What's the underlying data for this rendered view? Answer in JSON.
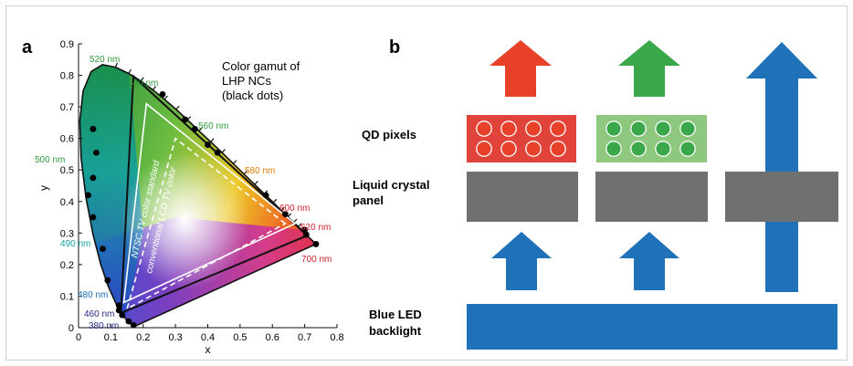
{
  "panel_a": {
    "label": "a",
    "legend_text": [
      "Color gamut of",
      "LHP NCs",
      "(black dots)"
    ],
    "ntsc_label": "NTSC TV color standard",
    "lcd_label": "conventional LCD TV color",
    "wavelength_labels": [
      {
        "text": "520 nm",
        "color": "#2e9a3a"
      },
      {
        "text": "540 nm",
        "color": "#2e9a3a"
      },
      {
        "text": "560 nm",
        "color": "#2e9a3a"
      },
      {
        "text": "580 nm",
        "color": "#e07b00"
      },
      {
        "text": "600 nm",
        "color": "#d0202a"
      },
      {
        "text": "620 nm",
        "color": "#d0202a"
      },
      {
        "text": "700 nm",
        "color": "#d0202a"
      },
      {
        "text": "500 nm",
        "color": "#2e9a3a"
      },
      {
        "text": "490 nm",
        "color": "#19a0a8"
      },
      {
        "text": "480 nm",
        "color": "#1d6bb5"
      },
      {
        "text": "460 nm",
        "color": "#2a2a8a"
      },
      {
        "text": "380 nm",
        "color": "#2a2a8a"
      }
    ]
  },
  "chart_data": {
    "type": "scatter",
    "title": "",
    "xlabel": "x",
    "ylabel": "y",
    "xlim": [
      0,
      0.8
    ],
    "ylim": [
      0,
      0.9
    ],
    "xticks": [
      "0",
      "0.1",
      "0.2",
      "0.3",
      "0.4",
      "0.5",
      "0.6",
      "0.7",
      "0.8"
    ],
    "yticks": [
      "0",
      "0.1",
      "0.2",
      "0.3",
      "0.4",
      "0.5",
      "0.6",
      "0.7",
      "0.8",
      "0.9"
    ],
    "grid": false,
    "spectral_locus": [
      [
        0.175,
        0.005
      ],
      [
        0.172,
        0.005
      ],
      [
        0.166,
        0.009
      ],
      [
        0.144,
        0.03
      ],
      [
        0.124,
        0.058
      ],
      [
        0.091,
        0.133
      ],
      [
        0.069,
        0.2
      ],
      [
        0.045,
        0.295
      ],
      [
        0.023,
        0.413
      ],
      [
        0.008,
        0.538
      ],
      [
        0.004,
        0.655
      ],
      [
        0.014,
        0.75
      ],
      [
        0.039,
        0.812
      ],
      [
        0.074,
        0.834
      ],
      [
        0.114,
        0.826
      ],
      [
        0.155,
        0.806
      ],
      [
        0.193,
        0.782
      ],
      [
        0.23,
        0.754
      ],
      [
        0.266,
        0.724
      ],
      [
        0.302,
        0.692
      ],
      [
        0.337,
        0.659
      ],
      [
        0.373,
        0.624
      ],
      [
        0.409,
        0.589
      ],
      [
        0.444,
        0.555
      ],
      [
        0.479,
        0.52
      ],
      [
        0.512,
        0.487
      ],
      [
        0.545,
        0.454
      ],
      [
        0.575,
        0.424
      ],
      [
        0.603,
        0.397
      ],
      [
        0.627,
        0.372
      ],
      [
        0.648,
        0.351
      ],
      [
        0.666,
        0.334
      ],
      [
        0.68,
        0.32
      ],
      [
        0.692,
        0.308
      ],
      [
        0.705,
        0.294
      ],
      [
        0.735,
        0.265
      ]
    ],
    "series": [
      {
        "points": [
          [
            0.708,
            0.292
          ],
          [
            0.17,
            0.797
          ],
          [
            0.131,
            0.046
          ]
        ]
      },
      {
        "points": [
          [
            0.67,
            0.33
          ],
          [
            0.21,
            0.71
          ],
          [
            0.14,
            0.08
          ]
        ]
      },
      {
        "points": [
          [
            0.64,
            0.33
          ],
          [
            0.3,
            0.6
          ],
          [
            0.15,
            0.06
          ]
        ]
      },
      {
        "points": [
          [
            0.045,
            0.63
          ],
          [
            0.055,
            0.555
          ],
          [
            0.045,
            0.475
          ],
          [
            0.03,
            0.42
          ],
          [
            0.045,
            0.35
          ],
          [
            0.075,
            0.25
          ],
          [
            0.09,
            0.15
          ],
          [
            0.125,
            0.07
          ],
          [
            0.155,
            0.02
          ],
          [
            0.17,
            0.008
          ],
          [
            0.26,
            0.74
          ],
          [
            0.33,
            0.66
          ],
          [
            0.36,
            0.63
          ],
          [
            0.4,
            0.58
          ],
          [
            0.43,
            0.555
          ],
          [
            0.58,
            0.42
          ],
          [
            0.64,
            0.36
          ],
          [
            0.7,
            0.31
          ],
          [
            0.705,
            0.295
          ],
          [
            0.735,
            0.265
          ],
          [
            0.125,
            0.055
          ],
          [
            0.135,
            0.04
          ]
        ]
      }
    ]
  },
  "panel_b": {
    "label": "b",
    "qd_label": "QD pixels",
    "lc_label": [
      "Liquid crystal",
      "panel"
    ],
    "led_label": [
      "Blue LED",
      "backlight"
    ],
    "colors": {
      "red": "#e8412a",
      "green": "#3aa84a",
      "blue": "#1f72b8",
      "gray": "#707070",
      "red_block": "#e0433a",
      "green_block": "#8ec77e"
    }
  }
}
